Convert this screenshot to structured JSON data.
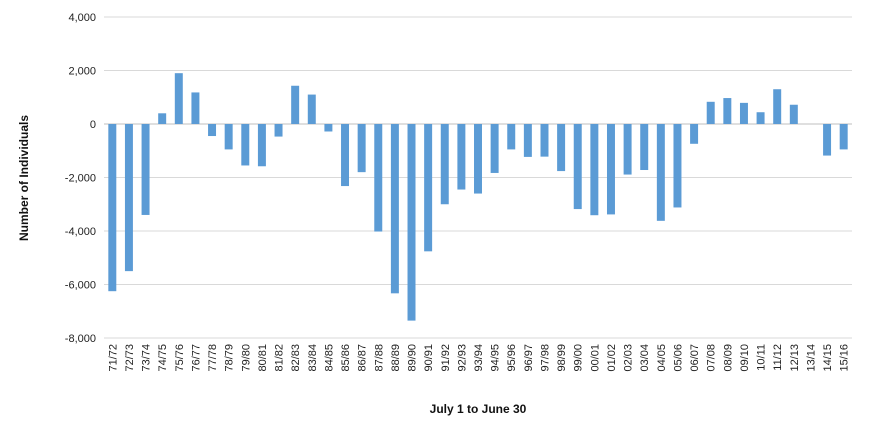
{
  "chart_data": {
    "type": "bar",
    "title": "",
    "xlabel": "July 1 to June 30",
    "ylabel": "Number of Individuals",
    "ylim": [
      -8000,
      4000
    ],
    "yticks": [
      -8000,
      -6000,
      -4000,
      -2000,
      0,
      2000,
      4000
    ],
    "ytick_labels": [
      "-8,000",
      "-6,000",
      "-4,000",
      "-2,000",
      "0",
      "2,000",
      "4,000"
    ],
    "grid": "horizontal",
    "bar_color": "#5b9bd5",
    "categories": [
      "71/72",
      "72/73",
      "73/74",
      "74/75",
      "75/76",
      "76/77",
      "77/78",
      "78/79",
      "79/80",
      "80/81",
      "81/82",
      "82/83",
      "83/84",
      "84/85",
      "85/86",
      "86/87",
      "87/88",
      "88/89",
      "89/90",
      "90/91",
      "91/92",
      "92/93",
      "93/94",
      "94/95",
      "95/96",
      "96/97",
      "97/98",
      "98/99",
      "99/00",
      "00/01",
      "01/02",
      "02/03",
      "03/04",
      "04/05",
      "05/06",
      "06/07",
      "07/08",
      "08/09",
      "09/10",
      "10/11",
      "11/12",
      "12/13",
      "13/14",
      "14/15",
      "15/16"
    ],
    "values": [
      -6250,
      -5500,
      -3400,
      400,
      1900,
      1180,
      -450,
      -950,
      -1550,
      -1580,
      -470,
      1430,
      1100,
      -280,
      -2320,
      -1800,
      -4020,
      -6330,
      -7350,
      -4760,
      -3000,
      -2450,
      -2600,
      -1830,
      -950,
      -1230,
      -1220,
      -1760,
      -3180,
      -3410,
      -3380,
      -1890,
      -1720,
      -3620,
      -3120,
      -740,
      830,
      970,
      790,
      440,
      1300,
      720,
      0,
      -1180,
      -950
    ]
  }
}
